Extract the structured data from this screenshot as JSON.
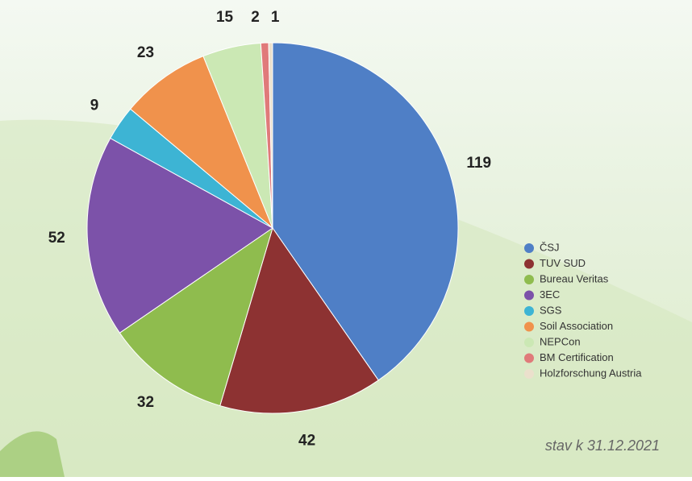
{
  "chart_data": {
    "type": "pie",
    "categories": [
      "ČSJ",
      "TUV SUD",
      "Bureau Veritas",
      "3EC",
      "SGS",
      "Soil Association",
      "NEPCon",
      "BM Certification",
      "Holzforschung Austria"
    ],
    "values": [
      119,
      42,
      32,
      52,
      9,
      23,
      15,
      2,
      1
    ],
    "colors": [
      "#4f7fc6",
      "#8d3232",
      "#8fbc4e",
      "#7c52a9",
      "#3db4d4",
      "#f0924c",
      "#cbe8b4",
      "#e07a7a",
      "#ebe0cc"
    ],
    "annotation": "stav k 31.12.2021"
  }
}
